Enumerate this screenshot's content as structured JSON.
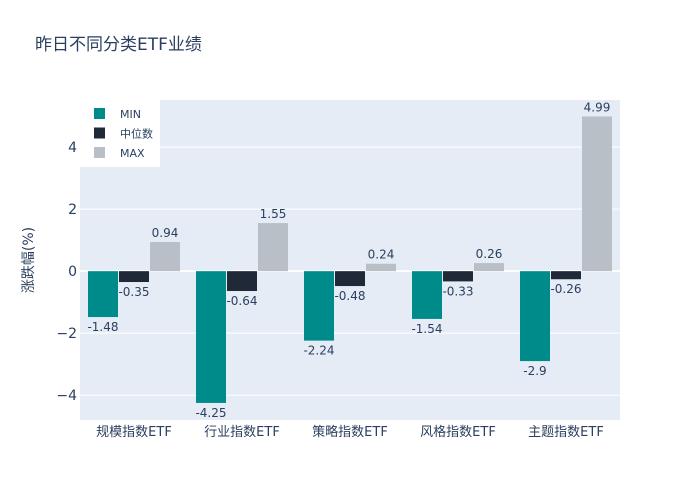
{
  "chart_data": {
    "type": "bar",
    "title": "昨日不同分类ETF业绩",
    "xlabel": "",
    "ylabel": "涨跌幅(%)",
    "categories": [
      "规模指数ETF",
      "行业指数ETF",
      "策略指数ETF",
      "风格指数ETF",
      "主题指数ETF"
    ],
    "series": [
      {
        "name": "MIN",
        "color": "#008b8b",
        "values": [
          -1.48,
          -4.25,
          -2.24,
          -1.54,
          -2.9
        ]
      },
      {
        "name": "中位数",
        "color": "#1f2937",
        "values": [
          -0.35,
          -0.64,
          -0.48,
          -0.33,
          -0.26
        ]
      },
      {
        "name": "MAX",
        "color": "#b8bfc7",
        "values": [
          0.94,
          1.55,
          0.24,
          0.26,
          4.99
        ]
      }
    ],
    "ylim": [
      -4.8,
      5.52
    ],
    "yticks": [
      -4,
      -2,
      0,
      2,
      4
    ],
    "grid": true,
    "legend": "top-left",
    "plot_bg": "#e5ecf6"
  }
}
